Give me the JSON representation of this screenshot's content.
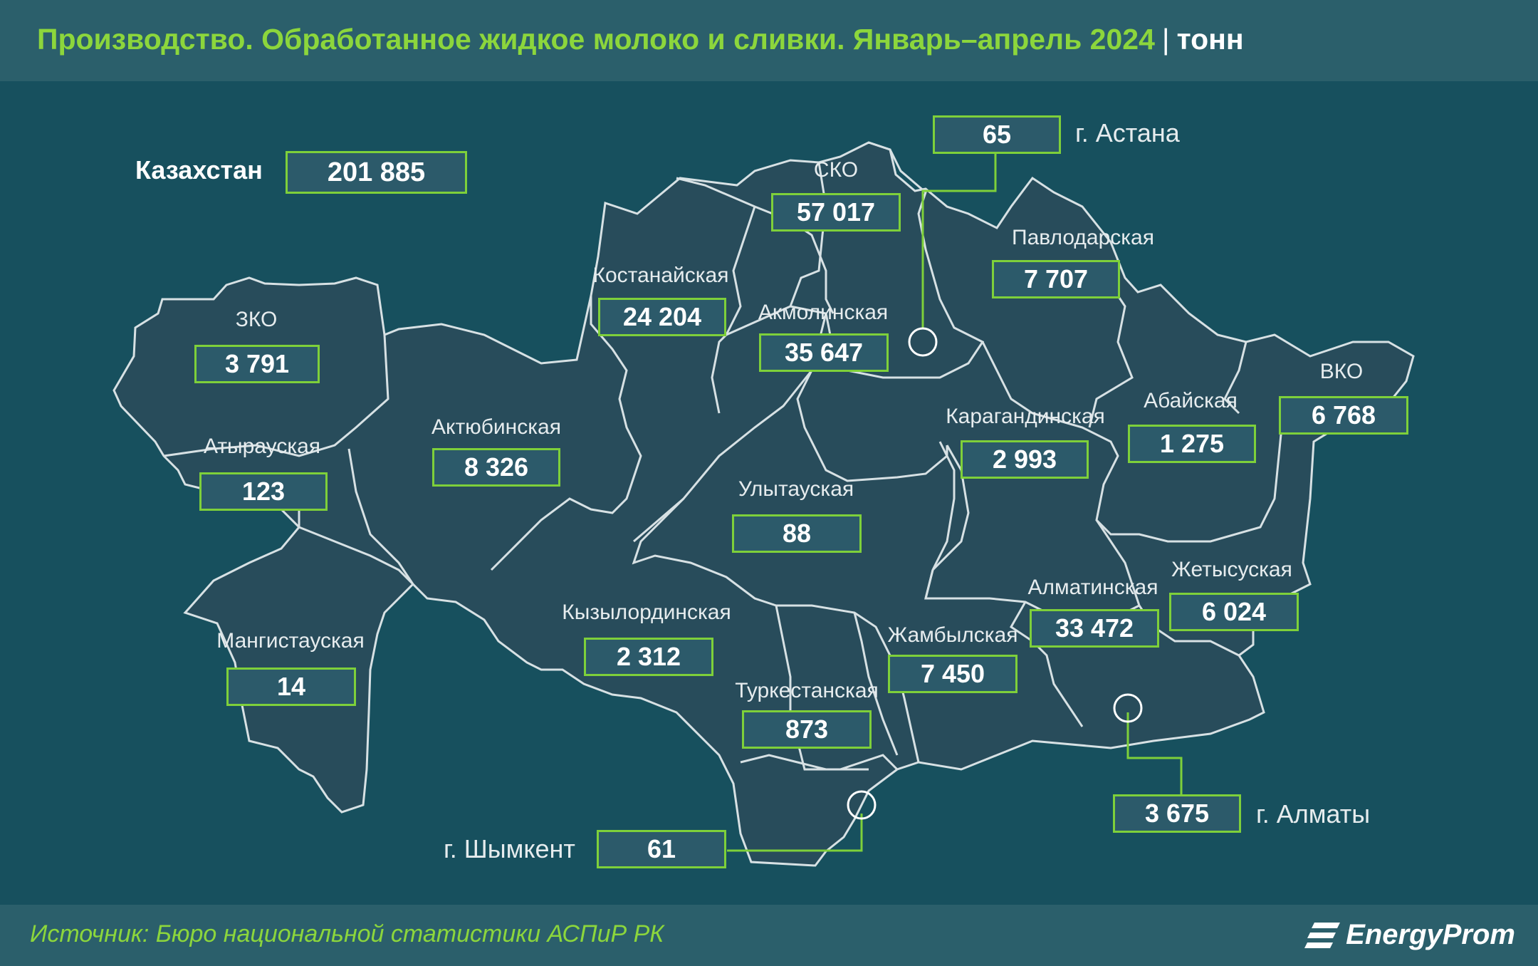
{
  "header": {
    "title": "Производство. Обработанное жидкое молоко и сливки. Январь–апрель 2024",
    "separator": "|",
    "unit": "тонн"
  },
  "total": {
    "label": "Казахстан",
    "value": "201 885"
  },
  "regions": {
    "zko": {
      "label": "ЗКО",
      "value": "3 791"
    },
    "atyrau": {
      "label": "Атырауская",
      "value": "123"
    },
    "mangistau": {
      "label": "Мангистауская",
      "value": "14"
    },
    "aktobe": {
      "label": "Актюбинская",
      "value": "8 326"
    },
    "kostanay": {
      "label": "Костанайская",
      "value": "24 204"
    },
    "sko": {
      "label": "СКО",
      "value": "57 017"
    },
    "akmola": {
      "label": "Акмолинская",
      "value": "35 647"
    },
    "pavlodar": {
      "label": "Павлодарская",
      "value": "7 707"
    },
    "karaganda": {
      "label": "Карагандинская",
      "value": "2 993"
    },
    "abai": {
      "label": "Абайская",
      "value": "1 275"
    },
    "vko": {
      "label": "ВКО",
      "value": "6 768"
    },
    "ulytau": {
      "label": "Улытауская",
      "value": "88"
    },
    "kyzylorda": {
      "label": "Кызылординская",
      "value": "2 312"
    },
    "turkestan": {
      "label": "Туркестанская",
      "value": "873"
    },
    "zhambyl": {
      "label": "Жамбылская",
      "value": "7 450"
    },
    "almaty_reg": {
      "label": "Алматинская",
      "value": "33 472"
    },
    "zhetysu": {
      "label": "Жетысуская",
      "value": "6 024"
    }
  },
  "cities": {
    "astana": {
      "label": "г. Астана",
      "value": "65"
    },
    "almaty": {
      "label": "г. Алматы",
      "value": "3 675"
    },
    "shymkent": {
      "label": "г. Шымкент",
      "value": "61"
    }
  },
  "footer": {
    "source": "Источник: Бюро национальной статистики АСПиР РК",
    "brand": "EnergyProm"
  },
  "colors": {
    "background": "#17505e",
    "region_fill": "#284c5b",
    "accent_green": "#7ed03a",
    "title_green": "#8cd63c"
  },
  "icons": {
    "brand": "energyprom-logo-icon",
    "city": "city-circle-marker"
  }
}
